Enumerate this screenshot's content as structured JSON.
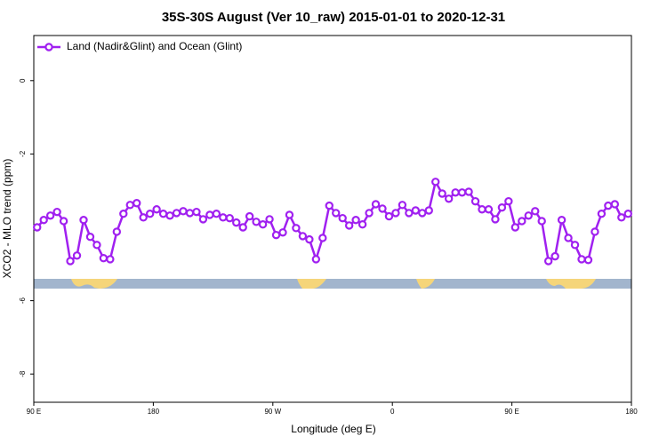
{
  "chart_data": {
    "type": "line",
    "title": "35S-30S August (Ver 10_raw)   2015-01-01 to 2020-12-31",
    "x_label": "Longitude (deg E)",
    "y_label": "XCO2 - MLO trend (ppm)",
    "x": [
      92.5,
      97.5,
      102.5,
      107.5,
      112.5,
      117.5,
      122.5,
      127.5,
      132.5,
      137.5,
      142.5,
      147.5,
      152.5,
      157.5,
      162.5,
      167.5,
      172.5,
      177.5,
      182.5,
      187.5,
      192.5,
      197.5,
      202.5,
      207.5,
      212.5,
      217.5,
      222.5,
      227.5,
      232.5,
      237.5,
      242.5,
      247.5,
      252.5,
      257.5,
      262.5,
      267.5,
      272.5,
      277.5,
      282.5,
      287.5,
      292.5,
      297.5,
      302.5,
      307.5,
      312.5,
      317.5,
      322.5,
      327.5,
      332.5,
      337.5,
      342.5,
      347.5,
      352.5,
      357.5,
      362.5,
      367.5,
      372.5,
      377.5,
      382.5,
      387.5,
      392.5,
      397.5,
      402.5,
      407.5,
      412.5,
      417.5,
      422.5,
      427.5,
      432.5,
      437.5,
      442.5,
      447.5,
      452.5,
      457.5,
      462.5,
      467.5,
      472.5,
      477.5,
      482.5,
      487.5,
      492.5,
      497.5,
      502.5,
      507.5,
      512.5,
      517.5,
      522.5,
      527.5,
      532.5,
      537.5
    ],
    "series": [
      {
        "name": "Land (Nadir&Glint) and Ocean (Glint)",
        "color": "#a020f0",
        "values": [
          -4.0,
          -3.8,
          -3.68,
          -3.58,
          -3.83,
          -4.92,
          -4.77,
          -3.8,
          -4.26,
          -4.48,
          -4.84,
          -4.87,
          -4.12,
          -3.63,
          -3.39,
          -3.34,
          -3.73,
          -3.63,
          -3.51,
          -3.63,
          -3.68,
          -3.61,
          -3.56,
          -3.61,
          -3.58,
          -3.78,
          -3.66,
          -3.63,
          -3.73,
          -3.75,
          -3.87,
          -4.0,
          -3.7,
          -3.85,
          -3.92,
          -3.78,
          -4.21,
          -4.14,
          -3.66,
          -4.02,
          -4.24,
          -4.33,
          -4.87,
          -4.29,
          -3.41,
          -3.61,
          -3.75,
          -3.95,
          -3.8,
          -3.92,
          -3.61,
          -3.37,
          -3.49,
          -3.7,
          -3.61,
          -3.39,
          -3.61,
          -3.54,
          -3.61,
          -3.54,
          -2.76,
          -3.08,
          -3.22,
          -3.05,
          -3.05,
          -3.03,
          -3.29,
          -3.51,
          -3.51,
          -3.78,
          -3.46,
          -3.29,
          -4.0,
          -3.83,
          -3.68,
          -3.56,
          -3.83,
          -4.92,
          -4.79,
          -3.8,
          -4.29,
          -4.48,
          -4.87,
          -4.89,
          -4.12,
          -3.63,
          -3.41,
          -3.37,
          -3.73,
          -3.63
        ]
      }
    ],
    "xlim": [
      90,
      540
    ],
    "xticks": [
      {
        "value": 90,
        "label": "90 E"
      },
      180,
      {
        "value": 270,
        "label": "90 W"
      },
      {
        "value": 360,
        "label": "0"
      },
      {
        "value": 450,
        "label": "90 E"
      },
      {
        "value": 540,
        "label": "180"
      }
    ],
    "ylim": [
      -8.77,
      1.23
    ],
    "yticks": [
      -8,
      -6,
      -2,
      0
    ],
    "legend": "top-left"
  }
}
